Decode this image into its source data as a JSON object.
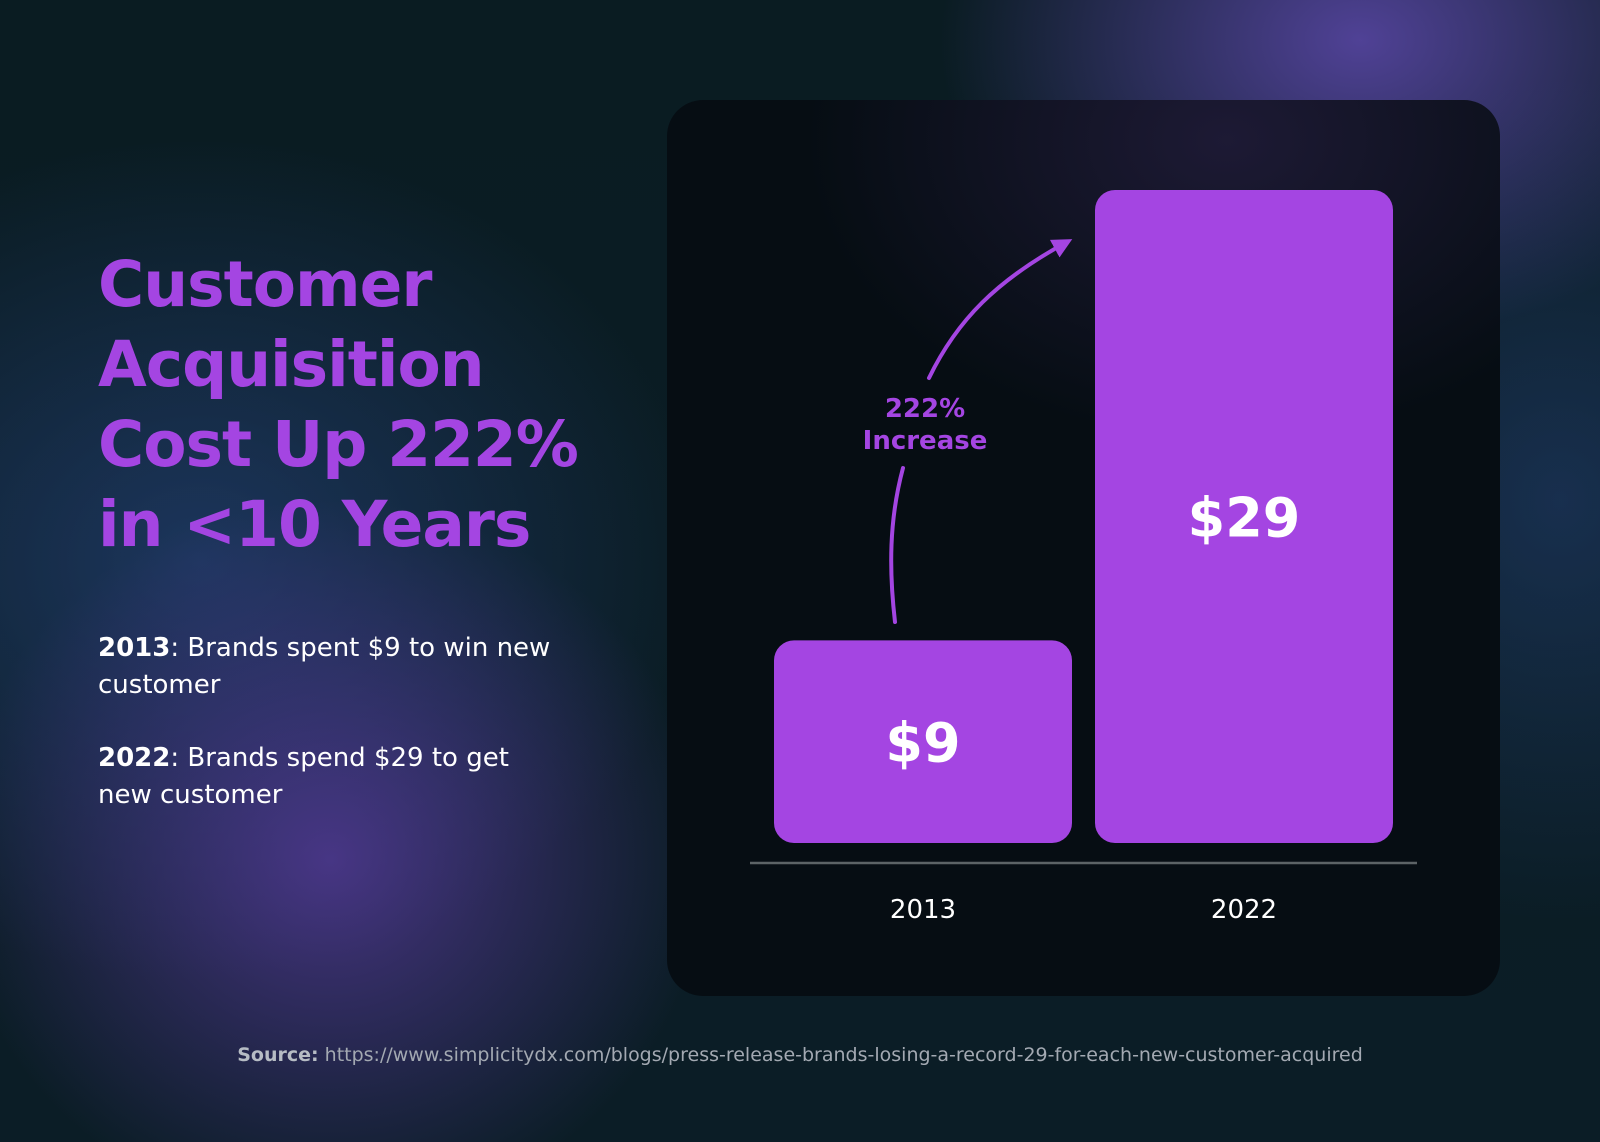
{
  "headline": {
    "line1": "Customer",
    "line2": "Acquisition",
    "line3": "Cost Up 222%",
    "line4": "in <10 Years"
  },
  "facts": [
    {
      "year": "2013",
      "text": ": Brands spent $9 to win new customer"
    },
    {
      "year": "2022",
      "text": ": Brands spend $29 to get new customer"
    }
  ],
  "source": {
    "label": "Source:",
    "url": "https://www.simplicitydx.com/blogs/press-release-brands-losing-a-record-29-for-each-new-customer-acquired"
  },
  "colors": {
    "accent": "#a445e2",
    "card": "#060d13",
    "text": "#ffffff",
    "baseline": "#5c6366"
  },
  "chart_data": {
    "type": "bar",
    "title": "",
    "categories": [
      "2013",
      "2022"
    ],
    "values": [
      9,
      29
    ],
    "data_labels": [
      "$9",
      "$29"
    ],
    "ylim": [
      0,
      29
    ],
    "xlabel": "",
    "ylabel": "",
    "grid": false,
    "annotation": {
      "text_line1": "222%",
      "text_line2": "Increase",
      "from_category": "2013",
      "to_category": "2022"
    }
  }
}
